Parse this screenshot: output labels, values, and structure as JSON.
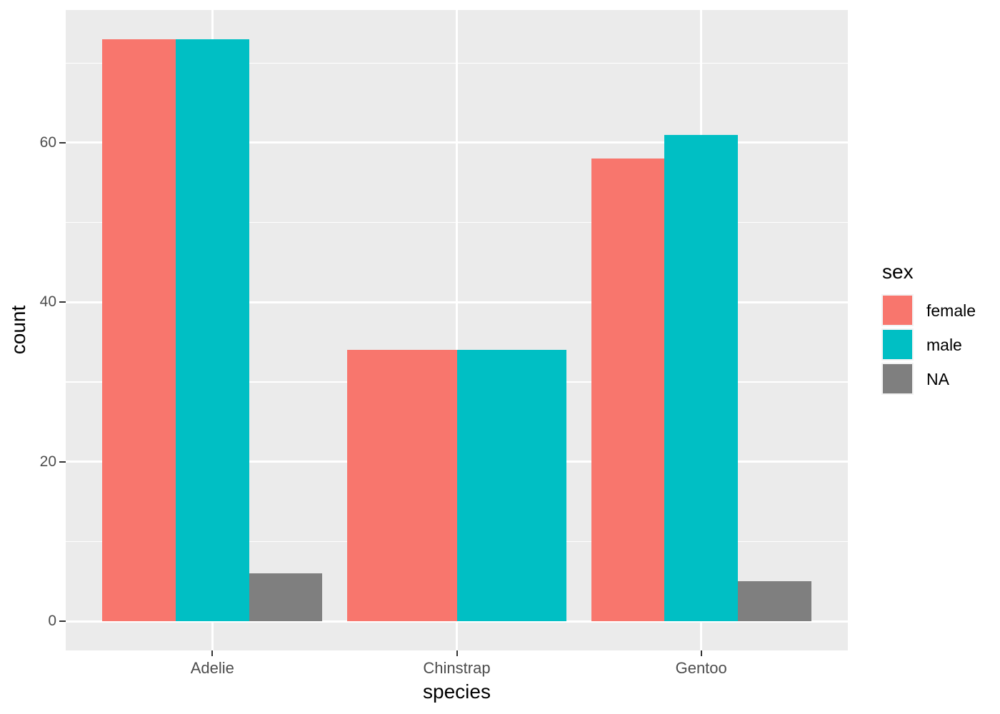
{
  "figure": {
    "background": "#FFFFFF",
    "panel_background": "#EBEBEB",
    "gridline_color": "#FFFFFF",
    "tick_mark_color": "#333333",
    "axis_text_color": "#4D4D4D",
    "title_color": "#000000",
    "legend_key_background": "#F2F2F2"
  },
  "chart_data": {
    "type": "bar",
    "title": "",
    "xlabel": "species",
    "ylabel": "count",
    "categories": [
      "Adelie",
      "Chinstrap",
      "Gentoo"
    ],
    "series": [
      {
        "name": "female",
        "color": "#F8766D",
        "values": [
          73,
          34,
          58
        ]
      },
      {
        "name": "male",
        "color": "#00BFC4",
        "values": [
          73,
          34,
          61
        ]
      },
      {
        "name": "NA",
        "color": "#7F7F7F",
        "values": [
          6,
          null,
          5
        ]
      }
    ],
    "ylim": [
      -3.65,
      76.65
    ],
    "yticks": [
      0,
      20,
      40,
      60
    ],
    "yticks_minor": [
      10,
      30,
      50,
      70
    ],
    "bar_group_width": 0.9,
    "grid": true,
    "legend": {
      "title": "sex",
      "position": "right"
    }
  }
}
